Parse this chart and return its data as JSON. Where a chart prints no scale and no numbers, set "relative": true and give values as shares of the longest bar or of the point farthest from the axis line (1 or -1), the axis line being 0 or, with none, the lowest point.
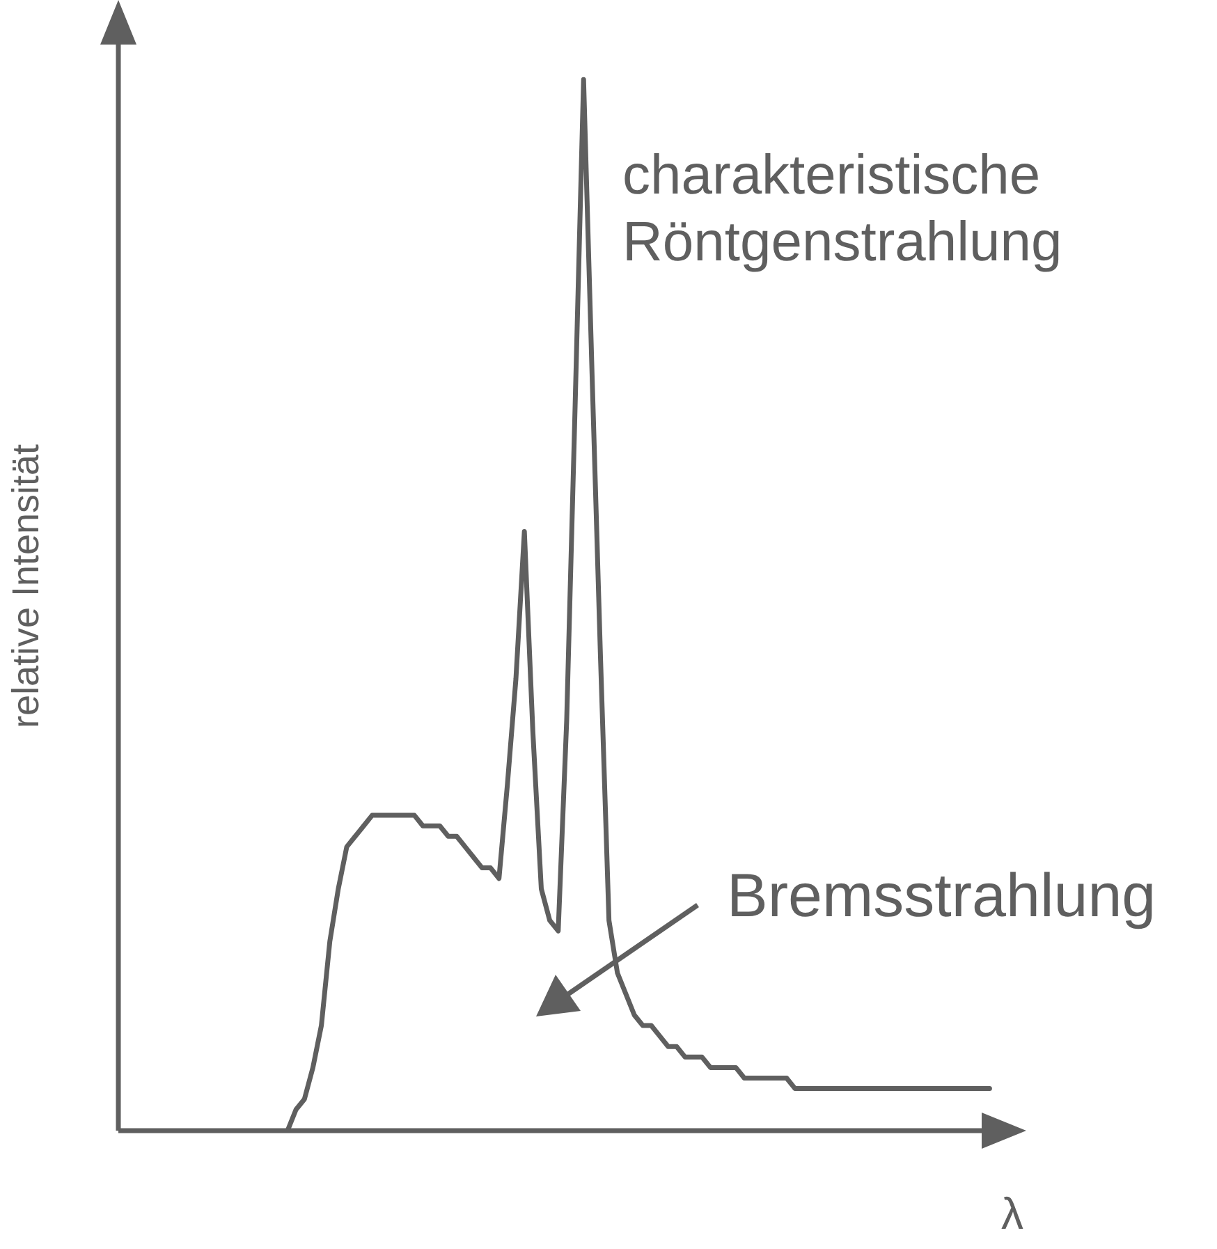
{
  "chart_data": {
    "type": "line",
    "relative": true,
    "xlabel": "λ",
    "ylabel": "relative Intensität",
    "color": "#5f5f5f",
    "grid": false,
    "legend": false,
    "marker": "none",
    "line_style": "solid",
    "categories": [
      null,
      null,
      null,
      null,
      null,
      null,
      null,
      null,
      null,
      null,
      null,
      null,
      null,
      null,
      null,
      null,
      null,
      null,
      null,
      null,
      null,
      null,
      null,
      null,
      null,
      null,
      null,
      null,
      null,
      null,
      null,
      null,
      null,
      null,
      null,
      null,
      null,
      null,
      null,
      null,
      null,
      null,
      null,
      null,
      null,
      null,
      null,
      null,
      null,
      null,
      null,
      null,
      null,
      null,
      null,
      null,
      null,
      null,
      null,
      null,
      null,
      null,
      null,
      null,
      null,
      null,
      null,
      null,
      null,
      null,
      null,
      null,
      null,
      null,
      null,
      null,
      null,
      null,
      null,
      null,
      null,
      null,
      null,
      null,
      null,
      null,
      null,
      null,
      null,
      null,
      null,
      null,
      null,
      null,
      null,
      null,
      null,
      null,
      null,
      null,
      null,
      null,
      null,
      null,
      null,
      null,
      null,
      null
    ],
    "values": [
      null,
      null,
      null,
      null,
      null,
      null,
      null,
      null,
      null,
      null,
      null,
      null,
      null,
      null,
      null,
      null,
      null,
      null,
      null,
      null,
      0,
      0.02,
      0.03,
      0.06,
      0.1,
      0.18,
      0.23,
      0.27,
      0.28,
      0.29,
      0.3,
      0.3,
      0.3,
      0.3,
      0.3,
      0.3,
      0.29,
      0.29,
      0.29,
      0.28,
      0.28,
      0.27,
      0.26,
      0.25,
      0.25,
      0.24,
      0.33,
      0.43,
      0.57,
      0.38,
      0.23,
      0.2,
      0.19,
      0.39,
      0.69,
      1,
      0.72,
      0.45,
      0.2,
      0.15,
      0.13,
      0.11,
      0.1,
      0.1,
      0.09,
      0.08,
      0.08,
      0.07,
      0.07,
      0.07,
      0.06,
      0.06,
      0.06,
      0.06,
      0.05,
      0.05,
      0.05,
      0.05,
      0.05,
      0.05,
      0.04,
      0.04,
      0.04,
      0.04,
      0.04,
      0.04,
      0.04,
      0.04,
      0.04,
      0.04,
      0.04,
      0.04,
      0.04,
      0.04,
      0.04,
      0.04,
      0.04,
      0.04,
      0.04,
      0.04,
      0.04,
      0.04,
      0.04,
      0.04,
      null,
      null,
      null,
      null
    ],
    "annotations": [
      "charakteristische Röntgenstrahlung",
      "Bremsstrahlung"
    ]
  }
}
